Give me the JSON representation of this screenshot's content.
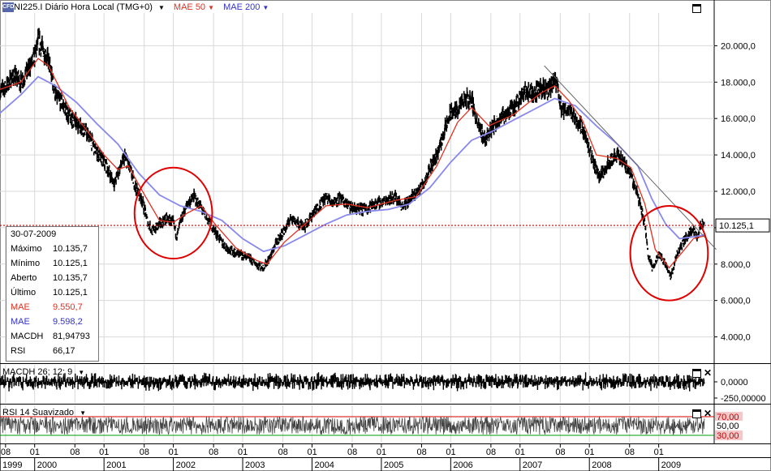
{
  "header": {
    "instrument": "NI225.I Diário Hora Local (TMG+0)",
    "ma1": "MAE 50",
    "ma2": "MAE 200",
    "logo": "CFD"
  },
  "colors": {
    "ma50": "#e03020",
    "ma200": "#8888ee",
    "price_line": "#cc0000",
    "circle": "#e00000",
    "grid": "#d8d8d8",
    "rsi_upper": "#d00000",
    "rsi_lower": "#009900"
  },
  "info": {
    "date": "30-07-2009",
    "rows": [
      {
        "k": "Máximo",
        "v": "10.135,7",
        "color": "#000000"
      },
      {
        "k": "Mínimo",
        "v": "10.125,1",
        "color": "#000000"
      },
      {
        "k": "Aberto",
        "v": "10.135,7",
        "color": "#000000"
      },
      {
        "k": "Último",
        "v": "10.125,1",
        "color": "#000000"
      },
      {
        "k": "MAE",
        "v": "9.550,7",
        "color": "#e03020"
      },
      {
        "k": "MAE",
        "v": "9.598,2",
        "color": "#3333cc"
      },
      {
        "k": "MACDH",
        "v": "81,94793",
        "color": "#000000"
      },
      {
        "k": "RSI",
        "v": "66,17",
        "color": "#000000"
      }
    ]
  },
  "macd_panel": {
    "label": "MACDH 26; 12; 9",
    "ticks": [
      "0,0000",
      "-250,00000"
    ]
  },
  "rsi_panel": {
    "label": "RSI 14 Suavizado",
    "upper": "70,00",
    "mid": "50,00",
    "lower": "30,00"
  },
  "chart_data": {
    "type": "line",
    "title": "NI225.I Diário Hora Local (TMG+0)",
    "ylim": [
      2600,
      21800
    ],
    "y_ticks": [
      {
        "v": 4000,
        "label": "4.000,0"
      },
      {
        "v": 6000,
        "label": "6.000,0"
      },
      {
        "v": 8000,
        "label": "8.000,0"
      },
      {
        "v": 10000,
        "label": "10.000,0"
      },
      {
        "v": 12000,
        "label": "12.000,0"
      },
      {
        "v": 14000,
        "label": "14.000,0"
      },
      {
        "v": 16000,
        "label": "16.000,0"
      },
      {
        "v": 18000,
        "label": "18.000,0"
      },
      {
        "v": 20000,
        "label": "20.000,0"
      }
    ],
    "last_price": {
      "v": 10125.1,
      "label": "10.125,1"
    },
    "x_axis": {
      "start": 1999.5,
      "end": 2009.8,
      "months": [
        {
          "t": 1999.58,
          "label": "08"
        },
        {
          "t": 2000.0,
          "label": "01"
        },
        {
          "t": 2000.58,
          "label": "08"
        },
        {
          "t": 2001.0,
          "label": "01"
        },
        {
          "t": 2001.58,
          "label": "08"
        },
        {
          "t": 2002.0,
          "label": "01"
        },
        {
          "t": 2002.58,
          "label": "08"
        },
        {
          "t": 2003.0,
          "label": "01"
        },
        {
          "t": 2003.58,
          "label": "08"
        },
        {
          "t": 2004.0,
          "label": "01"
        },
        {
          "t": 2004.58,
          "label": "08"
        },
        {
          "t": 2005.0,
          "label": "01"
        },
        {
          "t": 2005.58,
          "label": "08"
        },
        {
          "t": 2006.0,
          "label": "01"
        },
        {
          "t": 2006.58,
          "label": "08"
        },
        {
          "t": 2007.0,
          "label": "01"
        },
        {
          "t": 2007.58,
          "label": "08"
        },
        {
          "t": 2008.0,
          "label": "01"
        },
        {
          "t": 2008.58,
          "label": "08"
        },
        {
          "t": 2009.0,
          "label": "01"
        }
      ],
      "years": [
        {
          "t": 1999.5,
          "label": "1999"
        },
        {
          "t": 2000.0,
          "label": "2000"
        },
        {
          "t": 2001.0,
          "label": "2001"
        },
        {
          "t": 2002.0,
          "label": "2002"
        },
        {
          "t": 2003.0,
          "label": "2003"
        },
        {
          "t": 2004.0,
          "label": "2004"
        },
        {
          "t": 2005.0,
          "label": "2005"
        },
        {
          "t": 2006.0,
          "label": "2006"
        },
        {
          "t": 2007.0,
          "label": "2007"
        },
        {
          "t": 2008.0,
          "label": "2008"
        },
        {
          "t": 2009.0,
          "label": "2009"
        }
      ]
    },
    "series": [
      {
        "name": "NI225.I",
        "points": [
          [
            1999.5,
            17500
          ],
          [
            1999.6,
            17800
          ],
          [
            1999.7,
            18400
          ],
          [
            1999.8,
            18000
          ],
          [
            1999.9,
            18600
          ],
          [
            2000.0,
            19400
          ],
          [
            2000.05,
            20300
          ],
          [
            2000.12,
            19800
          ],
          [
            2000.2,
            19200
          ],
          [
            2000.3,
            17300
          ],
          [
            2000.4,
            16800
          ],
          [
            2000.5,
            16100
          ],
          [
            2000.6,
            15800
          ],
          [
            2000.7,
            15500
          ],
          [
            2000.8,
            14900
          ],
          [
            2000.9,
            14100
          ],
          [
            2001.0,
            13600
          ],
          [
            2001.08,
            13000
          ],
          [
            2001.15,
            12400
          ],
          [
            2001.2,
            13000
          ],
          [
            2001.3,
            13900
          ],
          [
            2001.35,
            13500
          ],
          [
            2001.45,
            12300
          ],
          [
            2001.55,
            11500
          ],
          [
            2001.63,
            10300
          ],
          [
            2001.7,
            9800
          ],
          [
            2001.8,
            10200
          ],
          [
            2001.9,
            10500
          ],
          [
            2002.0,
            10300
          ],
          [
            2002.05,
            9500
          ],
          [
            2002.1,
            10300
          ],
          [
            2002.2,
            11300
          ],
          [
            2002.3,
            11700
          ],
          [
            2002.4,
            11100
          ],
          [
            2002.5,
            10400
          ],
          [
            2002.6,
            9800
          ],
          [
            2002.7,
            9200
          ],
          [
            2002.8,
            8800
          ],
          [
            2002.9,
            8600
          ],
          [
            2003.0,
            8500
          ],
          [
            2003.1,
            8300
          ],
          [
            2003.2,
            8000
          ],
          [
            2003.3,
            7800
          ],
          [
            2003.4,
            8400
          ],
          [
            2003.5,
            9300
          ],
          [
            2003.6,
            9800
          ],
          [
            2003.7,
            10600
          ],
          [
            2003.8,
            10200
          ],
          [
            2003.9,
            10100
          ],
          [
            2004.0,
            10700
          ],
          [
            2004.1,
            11200
          ],
          [
            2004.2,
            11700
          ],
          [
            2004.3,
            11400
          ],
          [
            2004.4,
            11600
          ],
          [
            2004.5,
            11300
          ],
          [
            2004.6,
            11000
          ],
          [
            2004.7,
            11000
          ],
          [
            2004.8,
            11100
          ],
          [
            2004.9,
            11300
          ],
          [
            2005.0,
            11400
          ],
          [
            2005.1,
            11600
          ],
          [
            2005.2,
            11700
          ],
          [
            2005.3,
            11200
          ],
          [
            2005.4,
            11500
          ],
          [
            2005.5,
            11900
          ],
          [
            2005.6,
            12400
          ],
          [
            2005.7,
            13300
          ],
          [
            2005.8,
            14000
          ],
          [
            2005.9,
            15200
          ],
          [
            2006.0,
            16300
          ],
          [
            2006.1,
            16500
          ],
          [
            2006.2,
            17000
          ],
          [
            2006.3,
            17100
          ],
          [
            2006.4,
            15500
          ],
          [
            2006.5,
            14900
          ],
          [
            2006.6,
            15500
          ],
          [
            2006.7,
            16000
          ],
          [
            2006.8,
            16300
          ],
          [
            2006.9,
            16500
          ],
          [
            2007.0,
            17200
          ],
          [
            2007.1,
            17500
          ],
          [
            2007.2,
            17400
          ],
          [
            2007.3,
            17700
          ],
          [
            2007.4,
            17500
          ],
          [
            2007.5,
            18000
          ],
          [
            2007.55,
            17700
          ],
          [
            2007.6,
            16300
          ],
          [
            2007.7,
            16600
          ],
          [
            2007.8,
            16000
          ],
          [
            2007.9,
            15500
          ],
          [
            2008.0,
            14200
          ],
          [
            2008.1,
            13200
          ],
          [
            2008.15,
            12800
          ],
          [
            2008.3,
            13700
          ],
          [
            2008.4,
            14000
          ],
          [
            2008.5,
            13600
          ],
          [
            2008.6,
            12900
          ],
          [
            2008.7,
            11800
          ],
          [
            2008.8,
            10200
          ],
          [
            2008.85,
            8500
          ],
          [
            2008.92,
            7700
          ],
          [
            2009.0,
            8600
          ],
          [
            2009.1,
            8000
          ],
          [
            2009.18,
            7300
          ],
          [
            2009.25,
            8400
          ],
          [
            2009.35,
            9200
          ],
          [
            2009.45,
            9700
          ],
          [
            2009.5,
            10000
          ],
          [
            2009.55,
            9400
          ],
          [
            2009.6,
            10100
          ],
          [
            2009.66,
            10125
          ]
        ]
      },
      {
        "name": "MAE 50",
        "points": [
          [
            1999.5,
            17600
          ],
          [
            1999.8,
            18000
          ],
          [
            2000.05,
            19300
          ],
          [
            2000.2,
            18900
          ],
          [
            2000.5,
            16600
          ],
          [
            2000.8,
            15100
          ],
          [
            2001.0,
            14000
          ],
          [
            2001.2,
            13200
          ],
          [
            2001.35,
            13400
          ],
          [
            2001.6,
            11700
          ],
          [
            2001.8,
            10400
          ],
          [
            2002.0,
            10300
          ],
          [
            2002.2,
            10800
          ],
          [
            2002.4,
            11200
          ],
          [
            2002.6,
            10200
          ],
          [
            2002.9,
            8900
          ],
          [
            2003.2,
            8200
          ],
          [
            2003.35,
            8000
          ],
          [
            2003.6,
            9200
          ],
          [
            2003.9,
            10200
          ],
          [
            2004.2,
            11200
          ],
          [
            2004.5,
            11300
          ],
          [
            2004.8,
            11100
          ],
          [
            2005.2,
            11500
          ],
          [
            2005.5,
            11700
          ],
          [
            2005.8,
            13400
          ],
          [
            2006.1,
            15800
          ],
          [
            2006.3,
            16600
          ],
          [
            2006.55,
            15600
          ],
          [
            2006.9,
            16200
          ],
          [
            2007.3,
            17400
          ],
          [
            2007.5,
            17800
          ],
          [
            2007.7,
            17000
          ],
          [
            2007.9,
            15900
          ],
          [
            2008.1,
            14000
          ],
          [
            2008.4,
            13800
          ],
          [
            2008.6,
            13300
          ],
          [
            2008.8,
            11300
          ],
          [
            2008.95,
            8800
          ],
          [
            2009.15,
            7800
          ],
          [
            2009.35,
            8700
          ],
          [
            2009.5,
            9400
          ],
          [
            2009.66,
            9550
          ]
        ]
      },
      {
        "name": "MAE 200",
        "points": [
          [
            1999.5,
            16300
          ],
          [
            1999.8,
            17300
          ],
          [
            2000.05,
            18300
          ],
          [
            2000.3,
            17800
          ],
          [
            2000.6,
            16900
          ],
          [
            2000.9,
            15700
          ],
          [
            2001.2,
            14600
          ],
          [
            2001.5,
            13000
          ],
          [
            2001.8,
            11800
          ],
          [
            2002.1,
            11200
          ],
          [
            2002.4,
            10900
          ],
          [
            2002.7,
            10400
          ],
          [
            2003.0,
            9400
          ],
          [
            2003.3,
            8700
          ],
          [
            2003.6,
            9000
          ],
          [
            2003.9,
            9600
          ],
          [
            2004.2,
            10200
          ],
          [
            2004.5,
            10700
          ],
          [
            2004.8,
            10900
          ],
          [
            2005.1,
            11000
          ],
          [
            2005.4,
            11300
          ],
          [
            2005.7,
            12200
          ],
          [
            2006.0,
            13600
          ],
          [
            2006.3,
            14800
          ],
          [
            2006.6,
            15300
          ],
          [
            2006.9,
            15900
          ],
          [
            2007.2,
            16500
          ],
          [
            2007.5,
            17100
          ],
          [
            2007.8,
            16700
          ],
          [
            2008.1,
            15600
          ],
          [
            2008.4,
            14600
          ],
          [
            2008.7,
            13400
          ],
          [
            2008.9,
            11600
          ],
          [
            2009.1,
            10200
          ],
          [
            2009.3,
            9400
          ],
          [
            2009.5,
            9500
          ],
          [
            2009.66,
            9600
          ]
        ]
      }
    ],
    "trend_line": [
      [
        2007.35,
        18900
      ],
      [
        2009.83,
        8800
      ]
    ],
    "annotations": [
      {
        "type": "ellipse",
        "center": [
          2002.0,
          10800
        ],
        "rx": 0.56,
        "ry": 2500
      },
      {
        "type": "ellipse",
        "center": [
          2009.15,
          8600
        ],
        "rx": 0.56,
        "ry": 2600
      }
    ]
  }
}
